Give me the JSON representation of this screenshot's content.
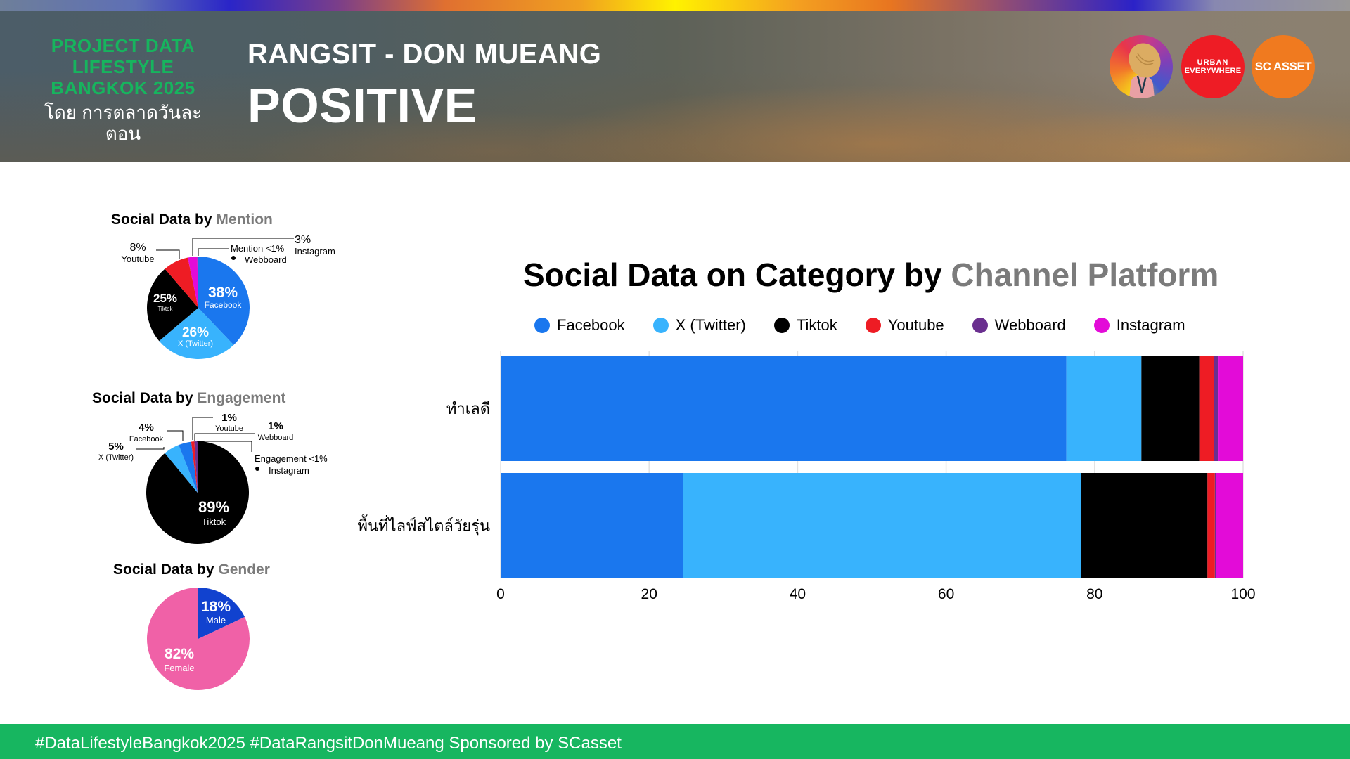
{
  "header": {
    "brand_lines": [
      "PROJECT DATA",
      "LIFESTYLE",
      "BANGKOK 2025"
    ],
    "brand_thai": "โดย การตลาดวันละตอน",
    "subtitle": "RANGSIT - DON MUEANG",
    "title": "POSITIVE",
    "logos": [
      {
        "name": "talad-wanlatorn-logo",
        "text": ""
      },
      {
        "name": "urban-everywhere-logo",
        "line1": "URBAN",
        "line2": "EVERYWHERE"
      },
      {
        "name": "sc-asset-logo",
        "text": "SC ASSET"
      }
    ]
  },
  "footer": {
    "text": "#DataLifestyleBangkok2025 #DataRangsitDonMueang Sponsored by SCasset"
  },
  "colors": {
    "Facebook": "#1a77ee",
    "X (Twitter)": "#38b3fd",
    "Tiktok": "#000000",
    "Youtube": "#ee1c24",
    "Webboard": "#6a2f8f",
    "Instagram": "#e30bd8",
    "Male": "#1142cf",
    "Female": "#f061a7",
    "brand_green": "#17b45e"
  },
  "chart_data": [
    {
      "type": "pie",
      "title_main": "Social Data by ",
      "title_accent": "Mention",
      "slices": [
        {
          "label": "Facebook",
          "value": 38,
          "pct_label": "38%"
        },
        {
          "label": "X (Twitter)",
          "value": 26,
          "pct_label": "26%"
        },
        {
          "label": "Tiktok",
          "value": 25,
          "pct_label": "25%"
        },
        {
          "label": "Youtube",
          "value": 8,
          "pct_label": "8%"
        },
        {
          "label": "Instagram",
          "value": 3,
          "pct_label": "3%"
        },
        {
          "label": "Webboard",
          "value": 0.3,
          "pct_label": "<1%"
        }
      ],
      "note": "Mention <1%",
      "note_item": "Webboard"
    },
    {
      "type": "pie",
      "title_main": "Social Data by ",
      "title_accent": "Engagement",
      "slices": [
        {
          "label": "Tiktok",
          "value": 89,
          "pct_label": "89%"
        },
        {
          "label": "X (Twitter)",
          "value": 5,
          "pct_label": "5%"
        },
        {
          "label": "Facebook",
          "value": 4,
          "pct_label": "4%"
        },
        {
          "label": "Youtube",
          "value": 1,
          "pct_label": "1%"
        },
        {
          "label": "Webboard",
          "value": 1,
          "pct_label": "1%"
        },
        {
          "label": "Instagram",
          "value": 0,
          "pct_label": "<1%"
        }
      ],
      "note": "Engagement <1%",
      "note_item": "Instagram"
    },
    {
      "type": "pie",
      "title_main": "Social Data by ",
      "title_accent": "Gender",
      "slices": [
        {
          "label": "Male",
          "value": 18,
          "pct_label": "18%"
        },
        {
          "label": "Female",
          "value": 82,
          "pct_label": "82%"
        }
      ]
    },
    {
      "type": "bar",
      "orientation": "horizontal-stacked",
      "title_main": "Social Data on Category by ",
      "title_accent": "Channel Platform",
      "categories": [
        "ทำเลดี",
        "พื้นที่ไลฟ์สไตล์วัยรุ่น"
      ],
      "series": [
        {
          "name": "Facebook",
          "values": [
            76.2,
            24.6
          ]
        },
        {
          "name": "X (Twitter)",
          "values": [
            10.1,
            53.6
          ]
        },
        {
          "name": "Tiktok",
          "values": [
            7.8,
            17.0
          ]
        },
        {
          "name": "Youtube",
          "values": [
            2.0,
            1.0
          ]
        },
        {
          "name": "Webboard",
          "values": [
            0.5,
            0.2
          ]
        },
        {
          "name": "Instagram",
          "values": [
            3.4,
            3.6
          ]
        }
      ],
      "xticks": [
        "0",
        "20",
        "40",
        "60",
        "80",
        "100"
      ],
      "xlim": [
        0,
        100
      ],
      "xlabel": "",
      "ylabel": "",
      "grid": true,
      "legend": "top"
    }
  ]
}
